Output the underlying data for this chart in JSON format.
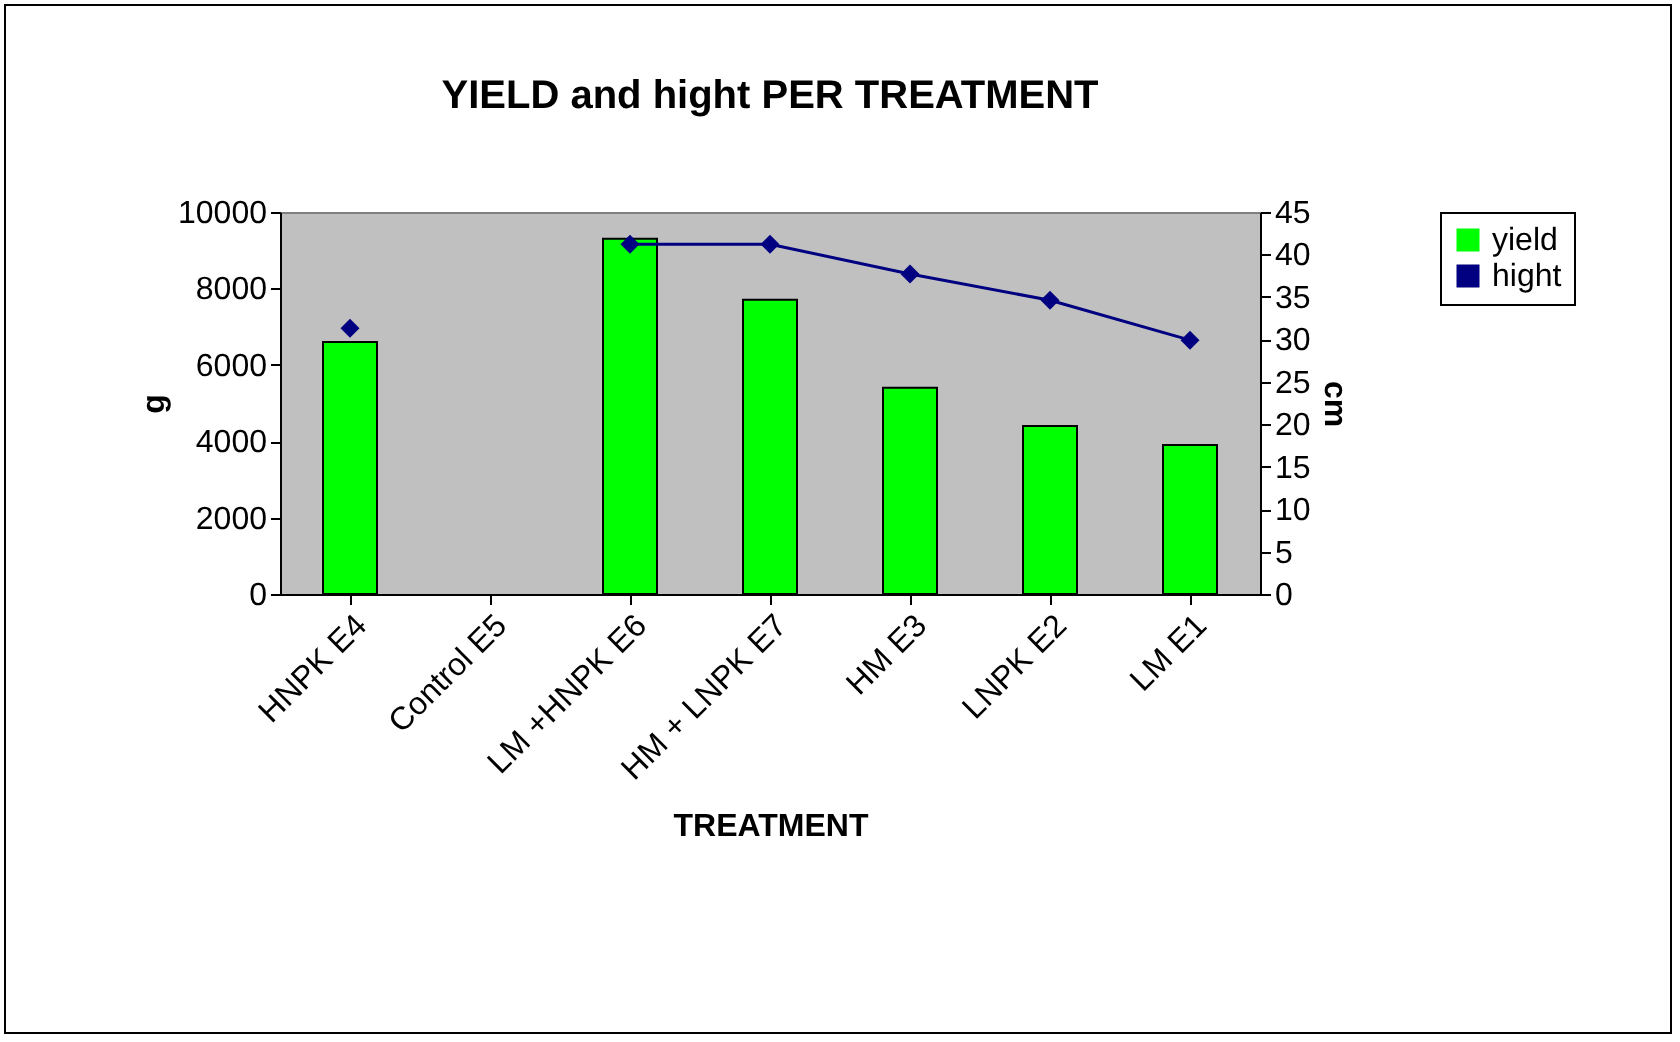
{
  "chart_data": {
    "type": "bar",
    "title": "YIELD and hight PER TREATMENT",
    "xlabel": "TREATMENT",
    "ylabel": "g",
    "y2label": "cm",
    "categories": [
      "HNPK E4",
      "Control E5",
      "LM +HNPK E6",
      "HM + LNPK E7",
      "HM E3",
      "LNPK E2",
      "LM E1"
    ],
    "series": [
      {
        "name": "yield",
        "color": "#00ff00",
        "values": [
          6600,
          null,
          9300,
          7700,
          5400,
          4400,
          3900
        ]
      },
      {
        "name": "hight",
        "type": "line",
        "axis": "y2",
        "color": "#000080",
        "marker": "diamond",
        "line_style": "solid",
        "values": [
          31.3,
          null,
          41.2,
          41.2,
          37.7,
          34.6,
          29.9
        ]
      }
    ],
    "ylim": [
      0,
      10000
    ],
    "yticks": [
      0,
      2000,
      4000,
      6000,
      8000,
      10000
    ],
    "y2lim": [
      0,
      45
    ],
    "y2ticks": [
      0,
      5,
      10,
      15,
      20,
      25,
      30,
      35,
      40,
      45
    ],
    "grid": false,
    "legend": "right"
  }
}
